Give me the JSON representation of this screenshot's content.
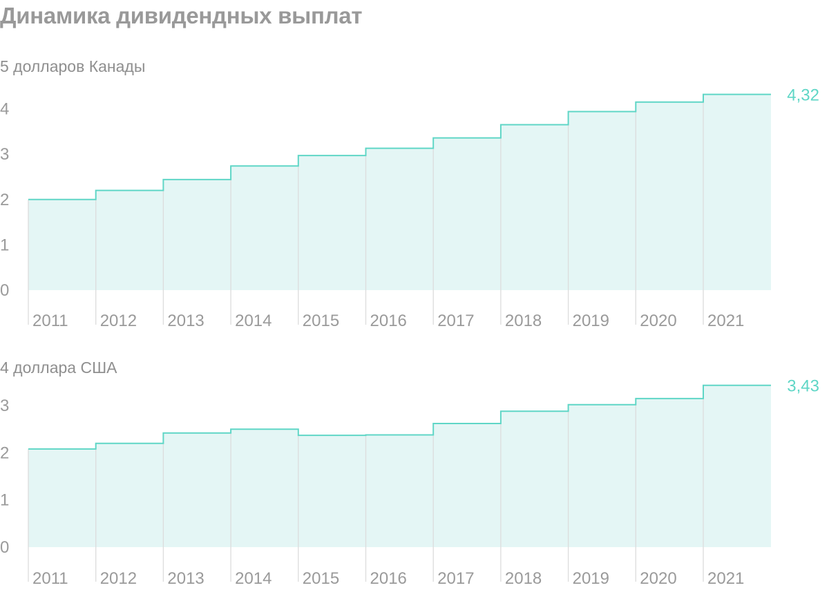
{
  "title": "Динамика дивидендных выплат",
  "colors": {
    "line": "#5fd6c6",
    "fill": "#e4f6f5",
    "text": "#999999"
  },
  "chart_data": [
    {
      "type": "area",
      "step": true,
      "subtitle": "5 долларов Канады",
      "categories": [
        "2011",
        "2012",
        "2013",
        "2014",
        "2015",
        "2016",
        "2017",
        "2018",
        "2019",
        "2020",
        "2021"
      ],
      "values": [
        2.0,
        2.2,
        2.44,
        2.74,
        2.97,
        3.13,
        3.36,
        3.65,
        3.94,
        4.15,
        4.32
      ],
      "end_label": "4,32",
      "yticks": [
        "0",
        "1",
        "2",
        "3",
        "4"
      ],
      "ylim": [
        0,
        4.5
      ]
    },
    {
      "type": "area",
      "step": true,
      "subtitle": "4 доллара США",
      "categories": [
        "2011",
        "2012",
        "2013",
        "2014",
        "2015",
        "2016",
        "2017",
        "2018",
        "2019",
        "2020",
        "2021"
      ],
      "values": [
        2.08,
        2.2,
        2.42,
        2.5,
        2.37,
        2.38,
        2.62,
        2.88,
        3.02,
        3.15,
        3.43
      ],
      "end_label": "3,43",
      "yticks": [
        "0",
        "1",
        "2",
        "3"
      ],
      "ylim": [
        0,
        3.8
      ]
    }
  ]
}
